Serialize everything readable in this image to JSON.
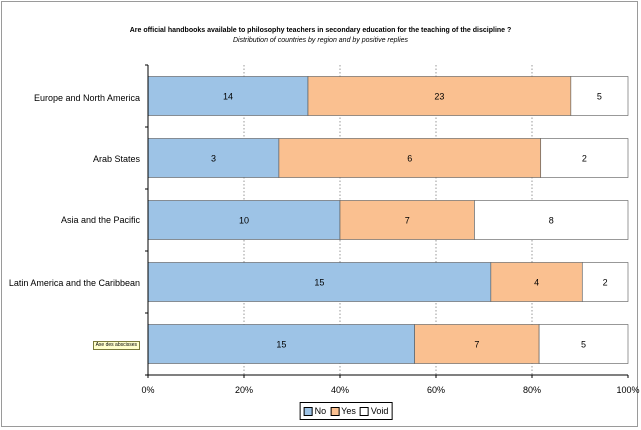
{
  "chart_data": {
    "type": "bar",
    "orientation": "horizontal",
    "stacked": "percent",
    "title": "Are official handbooks available to philosophy teachers in secondary education for the teaching of the discipline ?",
    "subtitle": "Distribution of countries by region and by positive replies",
    "categories": [
      "Europe and North America",
      "Arab States",
      "Asia and the Pacific",
      "Latin America and the Caribbean",
      "Axe des abscisses"
    ],
    "series": [
      {
        "name": "No",
        "values": [
          14,
          3,
          10,
          15,
          15
        ]
      },
      {
        "name": "Yes",
        "values": [
          23,
          6,
          7,
          4,
          7
        ]
      },
      {
        "name": "Void",
        "values": [
          5,
          2,
          8,
          2,
          5
        ]
      }
    ],
    "xticks": [
      "0%",
      "20%",
      "40%",
      "60%",
      "80%",
      "100%"
    ],
    "xlim": [
      0,
      100
    ],
    "grid": "vertical-dotted",
    "legend": "bottom"
  },
  "colors": {
    "No": "#9dc3e6",
    "Yes": "#fac090",
    "Void": "#ffffff"
  }
}
